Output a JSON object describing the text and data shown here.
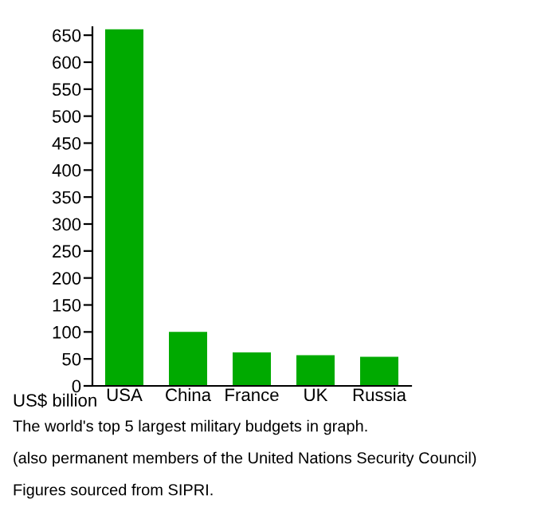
{
  "chart_data": {
    "type": "bar",
    "ylabel": "US$ billion",
    "categories": [
      "USA",
      "China",
      "France",
      "UK",
      "Russia"
    ],
    "values": [
      661,
      100,
      62,
      57,
      54
    ],
    "color": "#00aa00",
    "ylim": [
      0,
      665
    ],
    "yticks": [
      0,
      50,
      100,
      150,
      200,
      250,
      300,
      350,
      400,
      450,
      500,
      550,
      600,
      650
    ],
    "grid": false,
    "annotations": [
      "The world's top 5 largest military budgets in graph.",
      "(also permanent members of the United Nations Security Council)",
      "Figures sourced from SIPRI."
    ]
  }
}
